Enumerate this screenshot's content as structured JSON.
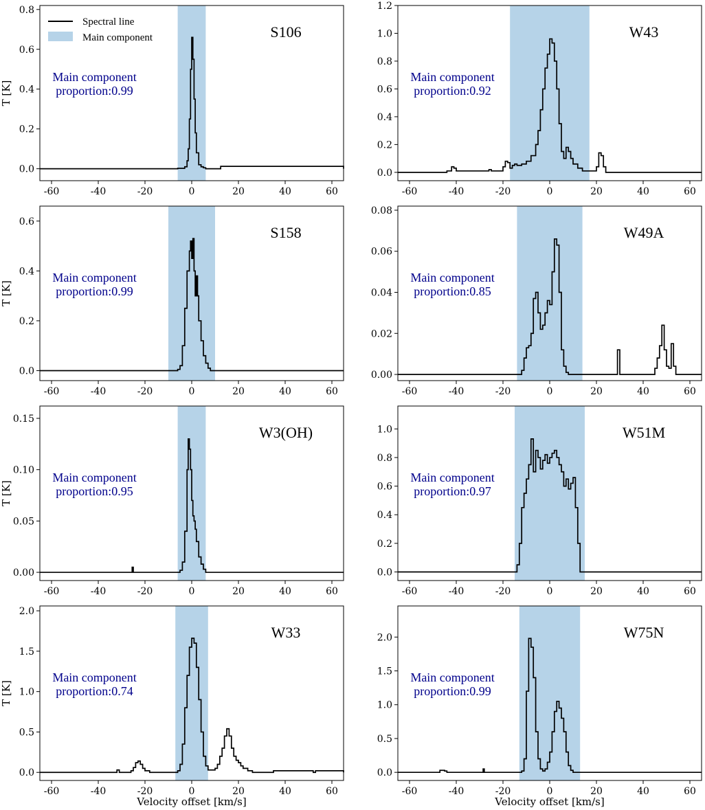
{
  "colors": {
    "line": "#000000",
    "shade": "#b6d3e8",
    "annotation": "#00008b"
  },
  "legend": {
    "location": "top-left of first panel",
    "line_label": "Spectral line",
    "shade_label": "Main component"
  },
  "chart_data": [
    {
      "type": "line",
      "title": "S106",
      "xlabel": "",
      "ylabel": "T [K]",
      "xlim": [
        -65,
        65
      ],
      "ylim": [
        -0.06,
        0.82
      ],
      "xticks": [
        -60,
        -40,
        -20,
        0,
        20,
        40,
        60
      ],
      "xtick_labels": [
        "-60",
        "-40",
        "-20",
        "0",
        "20",
        "40",
        "60"
      ],
      "yticks": [
        0.0,
        0.2,
        0.4,
        0.6,
        0.8
      ],
      "ytick_labels": [
        "0.0",
        "0.2",
        "0.4",
        "0.6",
        "0.8"
      ],
      "main_component_range": [
        -6,
        6
      ],
      "annotation": [
        "Main component",
        "proportion:0.99"
      ],
      "x": [
        -65,
        -6,
        -3,
        -2,
        -1.5,
        -1,
        -0.5,
        0,
        0.5,
        1,
        1.5,
        2,
        3,
        4,
        5,
        6,
        12,
        12.4,
        65
      ],
      "y": [
        0,
        0.002,
        0.01,
        0.04,
        0.1,
        0.25,
        0.5,
        0.66,
        0.55,
        0.35,
        0.18,
        0.08,
        0.02,
        0.01,
        0.005,
        0,
        0,
        0.012,
        0
      ]
    },
    {
      "type": "line",
      "title": "W43",
      "xlabel": "",
      "ylabel": "",
      "xlim": [
        -65,
        65
      ],
      "ylim": [
        -0.06,
        1.2
      ],
      "xticks": [
        -60,
        -40,
        -20,
        0,
        20,
        40,
        60
      ],
      "xtick_labels": [
        "-60",
        "-40",
        "-20",
        "0",
        "20",
        "40",
        "60"
      ],
      "yticks": [
        0.0,
        0.2,
        0.4,
        0.6,
        0.8,
        1.0,
        1.2
      ],
      "ytick_labels": [
        "0.0",
        "0.2",
        "0.4",
        "0.6",
        "0.8",
        "1.0",
        "1.2"
      ],
      "main_component_range": [
        -17,
        17
      ],
      "annotation": [
        "Main component",
        "proportion:0.92"
      ],
      "x": [
        -65,
        -44,
        -42,
        -41,
        -40,
        -30,
        -26,
        -25,
        -20,
        -19,
        -18,
        -17,
        -16,
        -15,
        -14,
        -12,
        -10,
        -8,
        -6,
        -5,
        -4,
        -3,
        -2,
        -1,
        0,
        1,
        2,
        3,
        4,
        5,
        6,
        7,
        8,
        9,
        10,
        12,
        14,
        17,
        20,
        21,
        22,
        23,
        24,
        65
      ],
      "y": [
        0,
        0.01,
        0.04,
        0.03,
        0.01,
        0.01,
        0.02,
        0.01,
        0.04,
        0.08,
        0.07,
        0.03,
        0.05,
        0.06,
        0.05,
        0.06,
        0.08,
        0.12,
        0.2,
        0.3,
        0.45,
        0.6,
        0.75,
        0.85,
        0.96,
        0.93,
        0.8,
        0.6,
        0.35,
        0.15,
        0.1,
        0.18,
        0.15,
        0.1,
        0.06,
        0.03,
        0.01,
        0.01,
        0.04,
        0.14,
        0.12,
        0.04,
        0,
        0
      ]
    },
    {
      "type": "line",
      "title": "S158",
      "xlabel": "",
      "ylabel": "T [K]",
      "xlim": [
        -65,
        65
      ],
      "ylim": [
        -0.04,
        0.66
      ],
      "xticks": [
        -60,
        -40,
        -20,
        0,
        20,
        40,
        60
      ],
      "xtick_labels": [
        "-60",
        "-40",
        "-20",
        "0",
        "20",
        "40",
        "60"
      ],
      "yticks": [
        0.0,
        0.2,
        0.4,
        0.6
      ],
      "ytick_labels": [
        "0.0",
        "0.2",
        "0.4",
        "0.6"
      ],
      "main_component_range": [
        -10,
        10
      ],
      "annotation": [
        "Main component",
        "proportion:0.99"
      ],
      "x": [
        -65,
        -6,
        -5,
        -4,
        -3,
        -2,
        -1,
        -0.5,
        0,
        0.5,
        1,
        1.5,
        2,
        2.5,
        3,
        4,
        5,
        6,
        7,
        8,
        65
      ],
      "y": [
        0,
        0.005,
        0.02,
        0.1,
        0.25,
        0.4,
        0.48,
        0.52,
        0.45,
        0.53,
        0.4,
        0.3,
        0.38,
        0.3,
        0.2,
        0.12,
        0.06,
        0.03,
        0.01,
        0,
        0
      ]
    },
    {
      "type": "line",
      "title": "W49A",
      "xlabel": "",
      "ylabel": "",
      "xlim": [
        -65,
        65
      ],
      "ylim": [
        -0.003,
        0.082
      ],
      "xticks": [
        -60,
        -40,
        -20,
        0,
        20,
        40,
        60
      ],
      "xtick_labels": [
        "-60",
        "-40",
        "-20",
        "0",
        "20",
        "40",
        "60"
      ],
      "yticks": [
        0.0,
        0.02,
        0.04,
        0.06,
        0.08
      ],
      "ytick_labels": [
        "0.00",
        "0.02",
        "0.04",
        "0.06",
        "0.08"
      ],
      "main_component_range": [
        -14,
        14
      ],
      "annotation": [
        "Main component",
        "proportion:0.85"
      ],
      "x": [
        -65,
        -12,
        -11,
        -10,
        -9,
        -8,
        -7,
        -6,
        -5,
        -4,
        -3,
        -2,
        -1,
        0,
        1,
        2,
        3,
        4,
        5,
        6,
        7,
        8,
        28,
        29,
        30,
        45,
        46,
        47,
        48,
        49,
        50,
        51,
        52,
        53,
        54,
        65
      ],
      "y": [
        0,
        0.002,
        0.008,
        0.013,
        0.014,
        0.02,
        0.037,
        0.04,
        0.03,
        0.022,
        0.024,
        0.03,
        0.036,
        0.034,
        0.05,
        0.066,
        0.063,
        0.04,
        0.012,
        0.004,
        0.001,
        0,
        0,
        0.012,
        0,
        0.003,
        0.008,
        0.014,
        0.024,
        0.012,
        0.004,
        0.003,
        0.015,
        0.004,
        0,
        0
      ]
    },
    {
      "type": "line",
      "title": "W3(OH)",
      "xlabel": "",
      "ylabel": "T [K]",
      "xlim": [
        -65,
        65
      ],
      "ylim": [
        -0.008,
        0.162
      ],
      "xticks": [
        -60,
        -40,
        -20,
        0,
        20,
        40,
        60
      ],
      "xtick_labels": [
        "-60",
        "-40",
        "-20",
        "0",
        "20",
        "40",
        "60"
      ],
      "yticks": [
        0.0,
        0.05,
        0.1,
        0.15
      ],
      "ytick_labels": [
        "0.00",
        "0.05",
        "0.10",
        "0.15"
      ],
      "main_component_range": [
        -6,
        6
      ],
      "annotation": [
        "Main component",
        "proportion:0.95"
      ],
      "x": [
        -65,
        -26,
        -25.5,
        -25,
        -5,
        -4,
        -3,
        -2,
        -1.5,
        -1,
        -0.5,
        0,
        0.5,
        1,
        1.5,
        2,
        3,
        4,
        5,
        6,
        65
      ],
      "y": [
        0,
        0,
        0.005,
        0,
        0.002,
        0.01,
        0.04,
        0.1,
        0.13,
        0.12,
        0.1,
        0.07,
        0.055,
        0.05,
        0.042,
        0.03,
        0.015,
        0.008,
        0.003,
        0,
        0
      ]
    },
    {
      "type": "line",
      "title": "W51M",
      "xlabel": "",
      "ylabel": "",
      "xlim": [
        -65,
        65
      ],
      "ylim": [
        -0.06,
        1.16
      ],
      "xticks": [
        -60,
        -40,
        -20,
        0,
        20,
        40,
        60
      ],
      "xtick_labels": [
        "-60",
        "-40",
        "-20",
        "0",
        "20",
        "40",
        "60"
      ],
      "yticks": [
        0.0,
        0.2,
        0.4,
        0.6,
        0.8,
        1.0
      ],
      "ytick_labels": [
        "0.0",
        "0.2",
        "0.4",
        "0.6",
        "0.8",
        "1.0"
      ],
      "main_component_range": [
        -15,
        15
      ],
      "annotation": [
        "Main component",
        "proportion:0.97"
      ],
      "x": [
        -65,
        -15,
        -14,
        -13,
        -12,
        -11,
        -10,
        -9,
        -8,
        -7,
        -6,
        -5,
        -4,
        -3,
        -2,
        -1,
        0,
        1,
        2,
        3,
        4,
        5,
        6,
        7,
        8,
        9,
        10,
        11,
        12,
        13,
        65
      ],
      "y": [
        0,
        0,
        0.05,
        0.2,
        0.45,
        0.55,
        0.65,
        0.75,
        0.93,
        0.7,
        0.85,
        0.8,
        0.72,
        0.78,
        0.82,
        0.76,
        0.8,
        0.83,
        0.85,
        0.8,
        0.75,
        0.7,
        0.6,
        0.65,
        0.58,
        0.62,
        0.66,
        0.45,
        0.2,
        0,
        0
      ]
    },
    {
      "type": "line",
      "title": "W33",
      "xlabel": "Velocity offset [km/s]",
      "ylabel": "T [K]",
      "xlim": [
        -65,
        65
      ],
      "ylim": [
        -0.1,
        2.06
      ],
      "xticks": [
        -60,
        -40,
        -20,
        0,
        20,
        40,
        60
      ],
      "xtick_labels": [
        "-60",
        "-40",
        "-20",
        "0",
        "20",
        "40",
        "60"
      ],
      "yticks": [
        0.0,
        0.5,
        1.0,
        1.5,
        2.0
      ],
      "ytick_labels": [
        "0.0",
        "0.5",
        "1.0",
        "1.5",
        "2.0"
      ],
      "main_component_range": [
        -7,
        7
      ],
      "annotation": [
        "Main component",
        "proportion:0.74"
      ],
      "x": [
        -65,
        -33,
        -32,
        -31,
        -26,
        -25,
        -24,
        -23,
        -22,
        -21,
        -20,
        -18,
        -6,
        -5,
        -4,
        -3,
        -2,
        -1,
        0,
        1,
        2,
        3,
        4,
        5,
        6,
        7,
        9,
        10,
        11,
        12,
        13,
        14,
        15,
        16,
        17,
        18,
        19,
        20,
        21,
        22,
        24,
        26,
        34,
        35,
        52,
        53,
        65
      ],
      "y": [
        0,
        0,
        0.03,
        0,
        0.02,
        0.06,
        0.12,
        0.14,
        0.1,
        0.05,
        0.02,
        0,
        0.02,
        0.1,
        0.35,
        0.8,
        1.2,
        1.55,
        1.66,
        1.6,
        1.3,
        0.9,
        0.5,
        0.2,
        0.08,
        0.03,
        0.03,
        0.05,
        0.1,
        0.2,
        0.3,
        0.45,
        0.54,
        0.45,
        0.3,
        0.2,
        0.15,
        0.12,
        0.08,
        0.05,
        0.02,
        0,
        0,
        0.02,
        0,
        0.02,
        0
      ]
    },
    {
      "type": "line",
      "title": "W75N",
      "xlabel": "Velocity offset [km/s]",
      "ylabel": "",
      "xlim": [
        -65,
        65
      ],
      "ylim": [
        -0.12,
        2.46
      ],
      "xticks": [
        -60,
        -40,
        -20,
        0,
        20,
        40,
        60
      ],
      "xtick_labels": [
        "-60",
        "-40",
        "-20",
        "0",
        "20",
        "40",
        "60"
      ],
      "yticks": [
        0.0,
        0.5,
        1.0,
        1.5,
        2.0
      ],
      "ytick_labels": [
        "0.0",
        "0.5",
        "1.0",
        "1.5",
        "2.0"
      ],
      "main_component_range": [
        -13,
        13
      ],
      "annotation": [
        "Main component",
        "proportion:0.99"
      ],
      "x": [
        -65,
        -48,
        -47,
        -45,
        -44,
        -29,
        -28.5,
        -28,
        -12,
        -11,
        -10,
        -9,
        -8,
        -7,
        -6,
        -5,
        -4,
        -3,
        -2,
        -1,
        0,
        1,
        2,
        3,
        4,
        5,
        6,
        7,
        8,
        9,
        10,
        65
      ],
      "y": [
        0,
        0,
        0.03,
        0.02,
        0,
        0,
        0.05,
        0,
        0.02,
        0.2,
        1.2,
        1.98,
        1.85,
        1.4,
        0.6,
        0.2,
        0.05,
        0.02,
        0.05,
        0.15,
        0.3,
        0.6,
        0.9,
        1.05,
        0.95,
        0.8,
        0.6,
        0.3,
        0.1,
        0.03,
        0,
        0
      ]
    }
  ]
}
